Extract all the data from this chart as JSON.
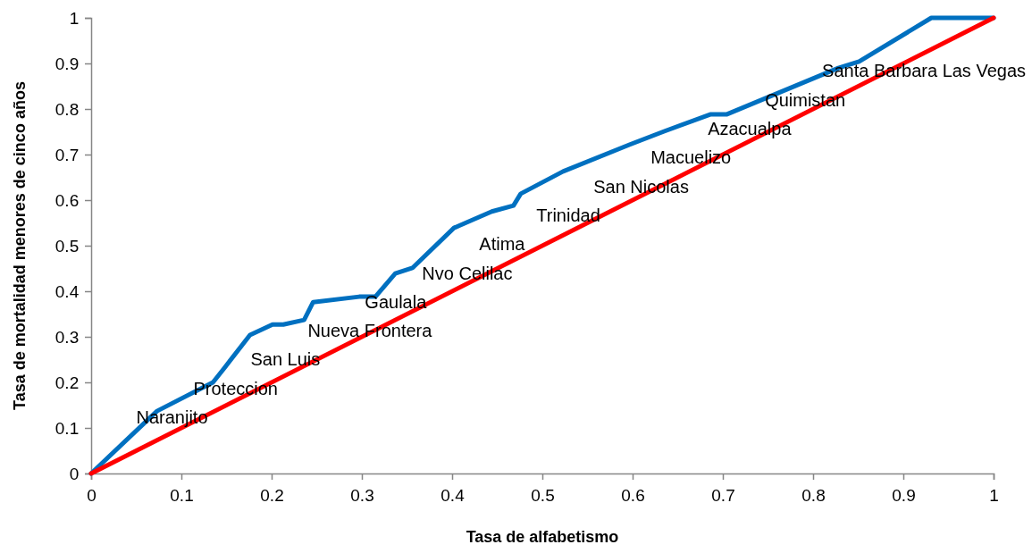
{
  "chart_data": {
    "type": "line",
    "xlabel": "Tasa de alfabetismo",
    "ylabel": "Tasa de mortalidad  menores de cinco años",
    "xlim": [
      0,
      1
    ],
    "ylim": [
      0,
      1
    ],
    "xticks": [
      0,
      0.1,
      0.2,
      0.3,
      0.4,
      0.5,
      0.6,
      0.7,
      0.8,
      0.9,
      1
    ],
    "yticks": [
      0,
      0.1,
      0.2,
      0.3,
      0.4,
      0.5,
      0.6,
      0.7,
      0.8,
      0.9,
      1
    ],
    "grid": false,
    "marker": "none",
    "line_style": "solid",
    "series": [
      {
        "color": "#0070c0",
        "x": [
          0,
          0.073,
          0.135,
          0.147,
          0.176,
          0.201,
          0.213,
          0.236,
          0.246,
          0.297,
          0.315,
          0.337,
          0.356,
          0.402,
          0.444,
          0.468,
          0.476,
          0.523,
          0.597,
          0.635,
          0.686,
          0.704,
          0.828,
          0.851,
          0.931,
          0.985,
          1
        ],
        "values": [
          0,
          0.137,
          0.2,
          0.23,
          0.304,
          0.327,
          0.327,
          0.337,
          0.376,
          0.388,
          0.388,
          0.439,
          0.451,
          0.539,
          0.575,
          0.588,
          0.614,
          0.663,
          0.722,
          0.751,
          0.788,
          0.788,
          0.89,
          0.904,
          1,
          1,
          1
        ]
      },
      {
        "color": "#ff0000",
        "x": [
          0,
          1
        ],
        "values": [
          0,
          1
        ]
      }
    ],
    "annotations": [
      "Naranjito",
      "Proteccion",
      "San Luis",
      "Nueva Frontera",
      "Gaulala",
      "Nvo Celilac",
      "Atima",
      "Trinidad",
      "San Nicolas",
      "Macuelizo",
      "Azacualpa",
      "Quimistan",
      "Santa Barbara Las Vegas"
    ]
  }
}
